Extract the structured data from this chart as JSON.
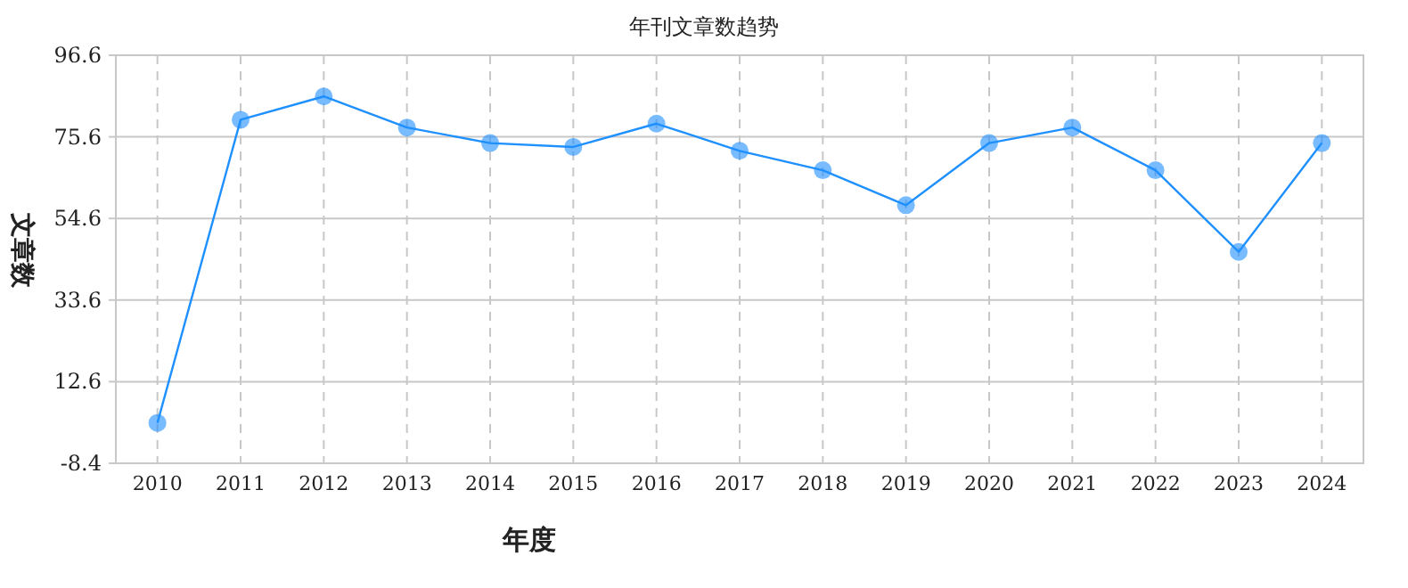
{
  "chart_data": {
    "type": "line",
    "title": "年刊文章数趋势",
    "xlabel": "年度",
    "ylabel": "文章数",
    "categories": [
      "2010",
      "2011",
      "2012",
      "2013",
      "2014",
      "2015",
      "2016",
      "2017",
      "2018",
      "2019",
      "2020",
      "2021",
      "2022",
      "2023",
      "2024"
    ],
    "series": [
      {
        "color": "#1e90ff",
        "values": [
          2,
          80,
          86,
          78,
          74,
          73,
          79,
          72,
          67,
          58,
          74,
          78,
          67,
          46,
          74
        ]
      }
    ],
    "ylim": [
      -8.4,
      96.6
    ],
    "yticks": [
      -8.4,
      12.6,
      33.6,
      54.6,
      75.6,
      96.6
    ],
    "grid": true,
    "marker": "circle",
    "line_style": "solid"
  }
}
